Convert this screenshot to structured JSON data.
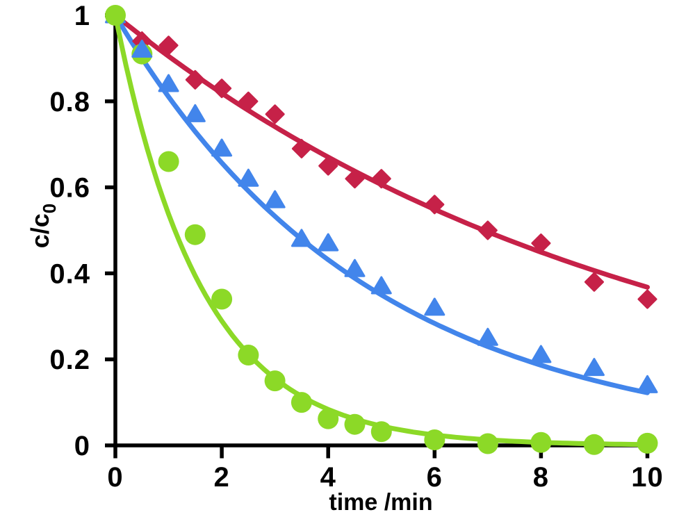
{
  "figure": {
    "background_color": "#ffffff",
    "axis_color": "#000000",
    "x_axis": {
      "title": "time /min",
      "tick_values": [
        0,
        2,
        4,
        6,
        8,
        10
      ],
      "tick_labels": [
        "0",
        "2",
        "4",
        "6",
        "8",
        "10"
      ],
      "range": [
        0,
        10
      ]
    },
    "y_axis": {
      "title_main": "c/c",
      "title_sub": "0",
      "tick_values": [
        1,
        0.8,
        0.6,
        0.4,
        0.2,
        0
      ],
      "tick_labels": [
        "1",
        "0.8",
        "0.6",
        "0.4",
        "0.2",
        "0"
      ],
      "range": [
        0,
        1
      ]
    }
  },
  "chart_data": {
    "type": "scatter",
    "title": "",
    "xlabel": "time /min",
    "ylabel": "c/c0",
    "xlim": [
      0,
      10
    ],
    "ylim": [
      0,
      1
    ],
    "grid": false,
    "legend": "none",
    "x": [
      0,
      0.5,
      1,
      1.5,
      2,
      2.5,
      3,
      3.5,
      4,
      4.5,
      5,
      6,
      7,
      8,
      9,
      10
    ],
    "series": [
      {
        "name": "slow-decay-diamonds",
        "marker": "diamond",
        "color": "#C62148",
        "fit": {
          "type": "exponential",
          "k_per_min": 0.1
        },
        "values": [
          1.0,
          0.94,
          0.93,
          0.85,
          0.83,
          0.8,
          0.77,
          0.69,
          0.65,
          0.62,
          0.62,
          0.56,
          0.5,
          0.47,
          0.38,
          0.34
        ]
      },
      {
        "name": "medium-decay-triangles",
        "marker": "triangle",
        "color": "#4285EB",
        "fit": {
          "type": "exponential",
          "k_per_min": 0.21
        },
        "values": [
          1.0,
          0.92,
          0.84,
          0.77,
          0.69,
          0.62,
          0.57,
          0.48,
          0.47,
          0.41,
          0.37,
          0.32,
          0.25,
          0.21,
          0.18,
          0.14
        ]
      },
      {
        "name": "fast-decay-circles",
        "marker": "circle",
        "color": "#8CD927",
        "fit": {
          "type": "exponential",
          "k_per_min": 0.62
        },
        "values": [
          1.0,
          0.91,
          0.66,
          0.49,
          0.34,
          0.21,
          0.15,
          0.1,
          0.062,
          0.049,
          0.032,
          0.013,
          0.004,
          0.007,
          0.002,
          0.005
        ]
      }
    ]
  }
}
